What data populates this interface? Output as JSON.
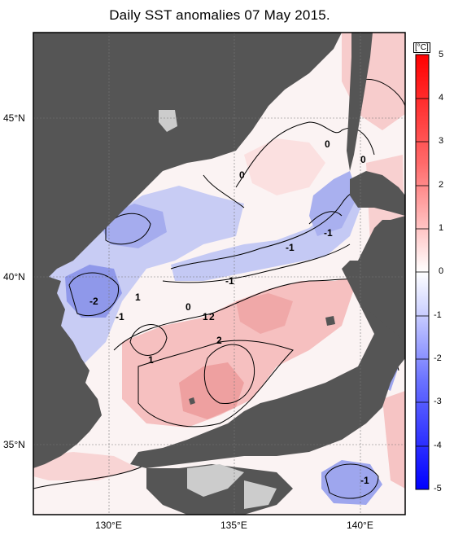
{
  "title": "Daily SST anomalies 07 May 2015.",
  "colorbar": {
    "unit": "[°C]",
    "range": [
      -5,
      5
    ],
    "ticks": [
      "5",
      "4",
      "3",
      "2",
      "1",
      "0",
      "-1",
      "-2",
      "-3",
      "-4",
      "-5"
    ]
  },
  "axes": {
    "lat_labels": [
      "45°N",
      "40°N",
      "35°N"
    ],
    "lon_labels": [
      "130°E",
      "135°E",
      "140°E"
    ]
  },
  "contour_labels": [
    "0",
    "0",
    "0",
    "-1",
    "-1",
    "-1",
    "-2",
    "1",
    "-1",
    "1",
    "0",
    "1",
    "2",
    "2",
    "-1"
  ],
  "colors": {
    "land": "#555555",
    "inland_land": "#cccccc",
    "warm": "#f4b8b8",
    "cool": "#b8bff0"
  }
}
